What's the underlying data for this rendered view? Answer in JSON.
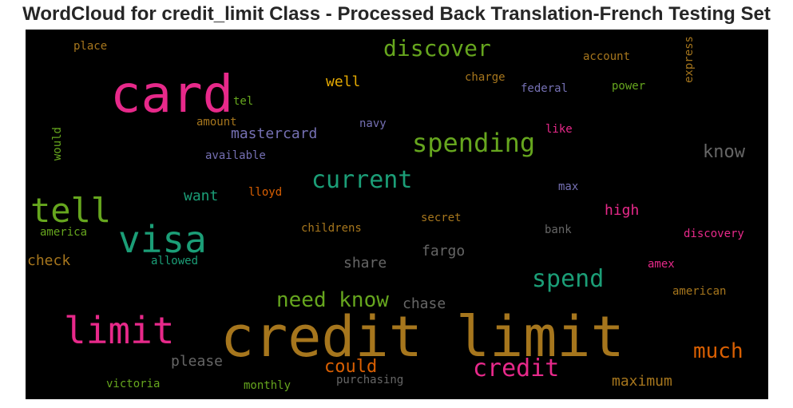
{
  "chart_data": {
    "type": "wordcloud",
    "title": "WordCloud for credit_limit Class - Processed Back Translation-French Testing Set",
    "background": "#000000",
    "words": [
      {
        "text": "credit limit",
        "color": "#a6761d",
        "weight": 1.0
      },
      {
        "text": "card",
        "color": "#e7298a",
        "weight": 0.85
      },
      {
        "text": "visa",
        "color": "#1b9e77",
        "weight": 0.62
      },
      {
        "text": "limit",
        "color": "#e7298a",
        "weight": 0.6
      },
      {
        "text": "tell",
        "color": "#66a61e",
        "weight": 0.55
      },
      {
        "text": "spending",
        "color": "#66a61e",
        "weight": 0.42
      },
      {
        "text": "discover",
        "color": "#66a61e",
        "weight": 0.36
      },
      {
        "text": "current",
        "color": "#1b9e77",
        "weight": 0.4
      },
      {
        "text": "spend",
        "color": "#1b9e77",
        "weight": 0.4
      },
      {
        "text": "credit",
        "color": "#e7298a",
        "weight": 0.38
      },
      {
        "text": "need know",
        "color": "#66a61e",
        "weight": 0.34
      },
      {
        "text": "much",
        "color": "#d95f02",
        "weight": 0.34
      },
      {
        "text": "know",
        "color": "#666666",
        "weight": 0.3
      },
      {
        "text": "could",
        "color": "#d95f02",
        "weight": 0.3
      },
      {
        "text": "mastercard",
        "color": "#7570b3",
        "weight": 0.25
      },
      {
        "text": "well",
        "color": "#e6ab02",
        "weight": 0.24
      },
      {
        "text": "share",
        "color": "#666666",
        "weight": 0.24
      },
      {
        "text": "fargo",
        "color": "#666666",
        "weight": 0.24
      },
      {
        "text": "high",
        "color": "#e7298a",
        "weight": 0.24
      },
      {
        "text": "check",
        "color": "#a6761d",
        "weight": 0.24
      },
      {
        "text": "want",
        "color": "#1b9e77",
        "weight": 0.22
      },
      {
        "text": "please",
        "color": "#666666",
        "weight": 0.24
      },
      {
        "text": "chase",
        "color": "#666666",
        "weight": 0.22
      },
      {
        "text": "maximum",
        "color": "#a6761d",
        "weight": 0.24
      },
      {
        "text": "place",
        "color": "#a6761d",
        "weight": 0.18
      },
      {
        "text": "account",
        "color": "#a6761d",
        "weight": 0.18
      },
      {
        "text": "charge",
        "color": "#a6761d",
        "weight": 0.18
      },
      {
        "text": "federal",
        "color": "#7570b3",
        "weight": 0.18
      },
      {
        "text": "power",
        "color": "#66a61e",
        "weight": 0.18
      },
      {
        "text": "express",
        "color": "#a6761d",
        "weight": 0.18
      },
      {
        "text": "tel",
        "color": "#66a61e",
        "weight": 0.18
      },
      {
        "text": "amount",
        "color": "#a6761d",
        "weight": 0.18
      },
      {
        "text": "navy",
        "color": "#7570b3",
        "weight": 0.18
      },
      {
        "text": "like",
        "color": "#e7298a",
        "weight": 0.18
      },
      {
        "text": "would",
        "color": "#66a61e",
        "weight": 0.18
      },
      {
        "text": "available",
        "color": "#7570b3",
        "weight": 0.18
      },
      {
        "text": "lloyd",
        "color": "#d95f02",
        "weight": 0.18
      },
      {
        "text": "max",
        "color": "#7570b3",
        "weight": 0.18
      },
      {
        "text": "america",
        "color": "#66a61e",
        "weight": 0.18
      },
      {
        "text": "childrens",
        "color": "#a6761d",
        "weight": 0.18
      },
      {
        "text": "secret",
        "color": "#a6761d",
        "weight": 0.18
      },
      {
        "text": "bank",
        "color": "#666666",
        "weight": 0.18
      },
      {
        "text": "discovery",
        "color": "#e7298a",
        "weight": 0.18
      },
      {
        "text": "allowed",
        "color": "#1b9e77",
        "weight": 0.18
      },
      {
        "text": "amex",
        "color": "#e7298a",
        "weight": 0.18
      },
      {
        "text": "american",
        "color": "#a6761d",
        "weight": 0.18
      },
      {
        "text": "victoria",
        "color": "#66a61e",
        "weight": 0.18
      },
      {
        "text": "monthly",
        "color": "#66a61e",
        "weight": 0.18
      },
      {
        "text": "purchasing",
        "color": "#666666",
        "weight": 0.18
      }
    ]
  }
}
